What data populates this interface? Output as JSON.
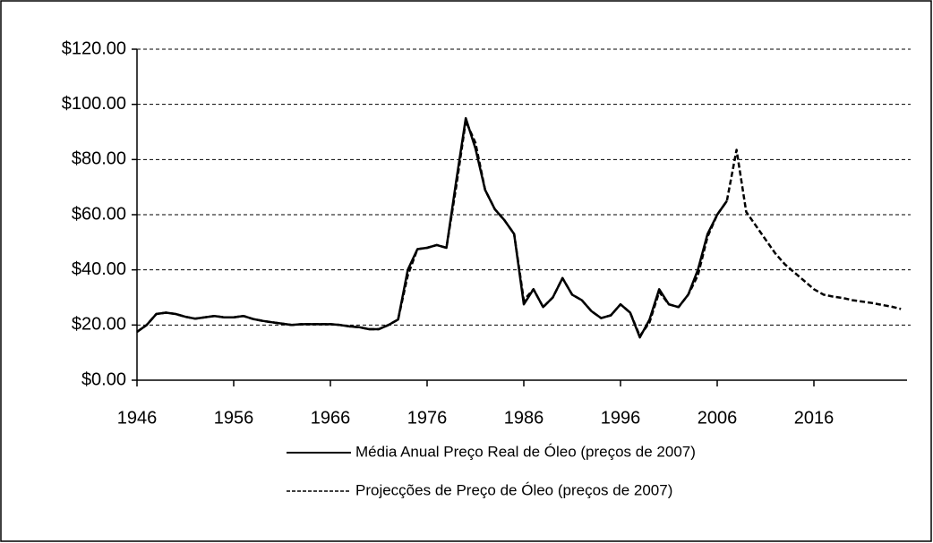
{
  "chart_data": {
    "type": "line",
    "x": [
      1946,
      1947,
      1948,
      1949,
      1950,
      1951,
      1952,
      1953,
      1954,
      1955,
      1956,
      1957,
      1958,
      1959,
      1960,
      1961,
      1962,
      1963,
      1964,
      1965,
      1966,
      1967,
      1968,
      1969,
      1970,
      1971,
      1972,
      1973,
      1974,
      1975,
      1976,
      1977,
      1978,
      1979,
      1980,
      1981,
      1982,
      1983,
      1984,
      1985,
      1986,
      1987,
      1988,
      1989,
      1990,
      1991,
      1992,
      1993,
      1994,
      1995,
      1996,
      1997,
      1998,
      1999,
      2000,
      2001,
      2002,
      2003,
      2004,
      2005,
      2006,
      2007,
      2008,
      2009,
      2010,
      2011,
      2012,
      2013,
      2014,
      2015,
      2016,
      2017,
      2018,
      2019,
      2020,
      2021,
      2022,
      2023,
      2024,
      2025
    ],
    "series": [
      {
        "name": "Média Anual Preço Real de Óleo (preços de 2007)",
        "color": "#000000",
        "style": "solid",
        "values": [
          17.5,
          20,
          24,
          24.5,
          24,
          23,
          22.3,
          22.8,
          23.3,
          22.8,
          22.8,
          23.3,
          22.2,
          21.5,
          21,
          20.5,
          20,
          20.3,
          20.3,
          20.3,
          20.3,
          20,
          19.5,
          19.2,
          18.5,
          18.5,
          20,
          22,
          40,
          47.5,
          48,
          49,
          48,
          72,
          95,
          84,
          69,
          62,
          58,
          53,
          27.5,
          33,
          26.5,
          30,
          37,
          31,
          29,
          25,
          22.5,
          23.5,
          27.5,
          24.5,
          15.5,
          22,
          33,
          27.5,
          26.5,
          31,
          40,
          53,
          60,
          65,
          null,
          null,
          null,
          null,
          null,
          null,
          null,
          null,
          null,
          null,
          null,
          null,
          null,
          null,
          null,
          null,
          null,
          null
        ]
      },
      {
        "name": "Projecções de Preço de Óleo (preços de 2007)",
        "color": "#000000",
        "style": "dashed",
        "values": [
          17.5,
          20,
          24,
          24.5,
          24,
          23,
          22.3,
          22.8,
          23.3,
          22.8,
          22.8,
          23.3,
          22.2,
          21.5,
          21,
          20.5,
          20,
          20.3,
          20.3,
          20.3,
          20.3,
          20,
          19.5,
          19.2,
          18.5,
          18.5,
          20,
          22,
          38,
          47.5,
          48,
          49,
          48,
          70,
          94,
          86,
          69,
          62,
          58,
          53,
          29,
          33,
          26.5,
          30,
          37,
          31,
          29,
          25,
          22.5,
          23.5,
          27.5,
          24.5,
          16,
          21,
          32,
          27.5,
          26.5,
          31,
          38,
          52,
          60,
          65,
          83.5,
          61,
          56,
          51,
          46,
          42,
          39,
          36,
          33,
          31,
          30.3,
          29.8,
          29,
          28.5,
          28,
          27.3,
          26.7,
          25.8
        ]
      }
    ],
    "xlim": [
      1946,
      2026
    ],
    "xticks": [
      1946,
      1956,
      1966,
      1976,
      1986,
      1996,
      2006,
      2016
    ],
    "ylim": [
      0,
      120
    ],
    "yticks": [
      {
        "value": 0,
        "label": "$0.00"
      },
      {
        "value": 20,
        "label": "$20.00"
      },
      {
        "value": 40,
        "label": "$40.00"
      },
      {
        "value": 60,
        "label": "$60.00"
      },
      {
        "value": 80,
        "label": "$80.00"
      },
      {
        "value": 100,
        "label": "$100.00"
      },
      {
        "value": 120,
        "label": "$120.00"
      }
    ],
    "grid": true,
    "legend": "bottom"
  }
}
